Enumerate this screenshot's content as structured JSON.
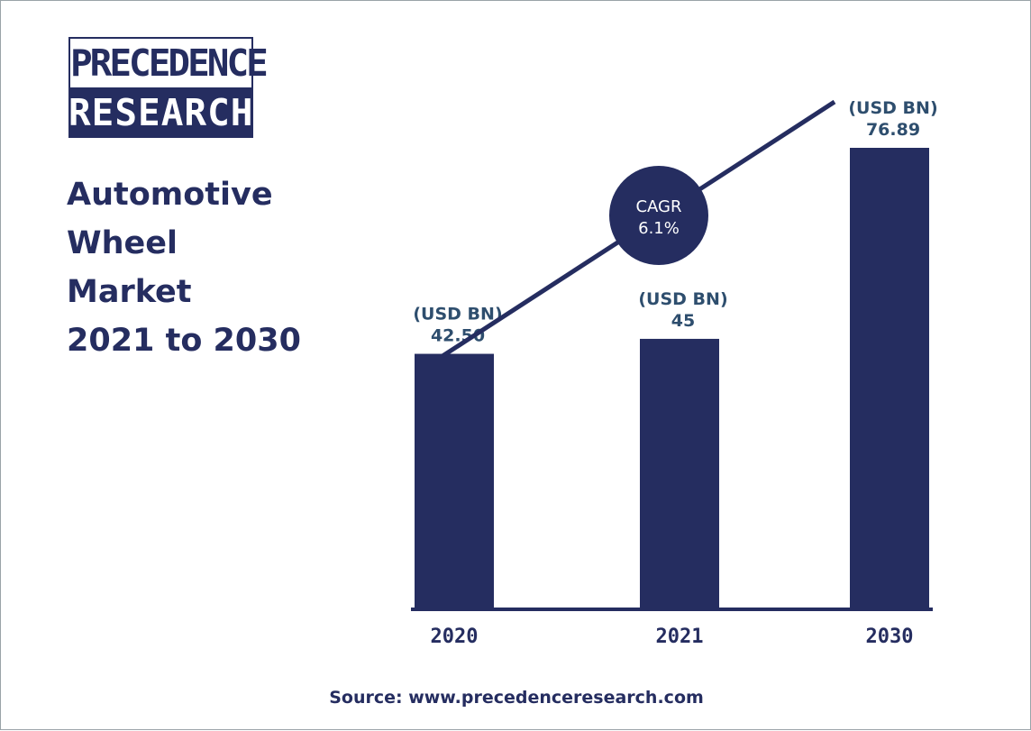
{
  "logo": {
    "line1": "PRECEDENCE",
    "line2": "RESEARCH"
  },
  "title": {
    "lines": [
      "Automotive",
      "Wheel",
      "Market",
      "2021 to 2030"
    ]
  },
  "cagr": {
    "label": "CAGR",
    "value": "6.1%"
  },
  "source": "Source: www.precedenceresearch.com",
  "colors": {
    "bar": "#252d60",
    "text": "#252d60",
    "background": "#ffffff"
  },
  "chart_data": {
    "type": "bar",
    "title": "Automotive Wheel Market 2021 to 2030",
    "categories": [
      "2020",
      "2021",
      "2030"
    ],
    "values": [
      42.5,
      45,
      76.89
    ],
    "unit_label": "(USD BN)",
    "data_labels": [
      "42.50",
      "45",
      "76.89"
    ],
    "annotation": "CAGR 6.1%",
    "xlabel": "",
    "ylabel": "",
    "grid": false
  }
}
